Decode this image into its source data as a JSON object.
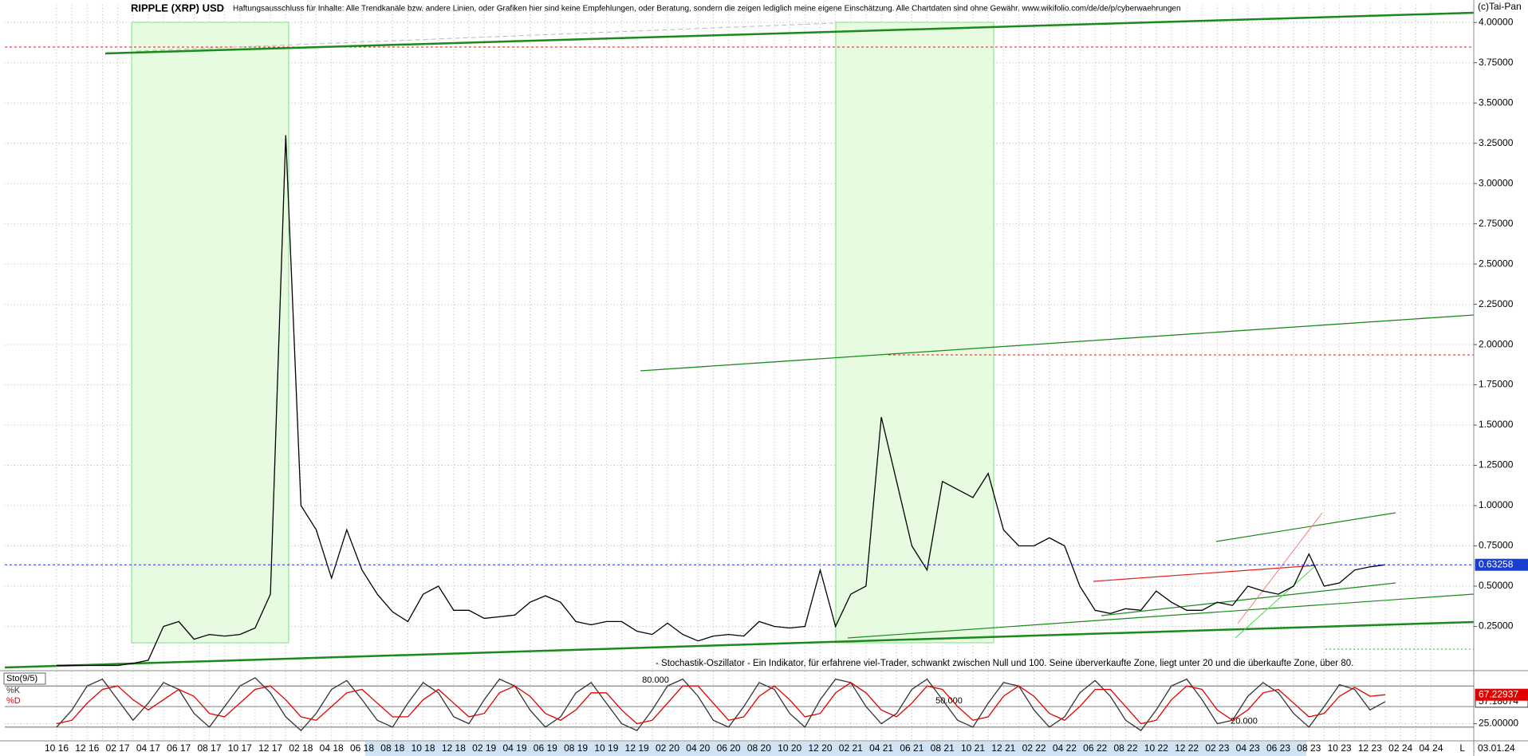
{
  "chart_data": [
    {
      "type": "line",
      "title": "RIPPLE (XRP) USD",
      "subtitle": "Haftungsausschluss für Inhalte: Alle Trendkanäle bzw. andere Linien, oder Grafiken hier sind keine Empfehlungen, oder Beratung, sondern die zeigen lediglich meine eigene Einschätzung. Alle Chartdaten sind ohne Gewähr.  www.wikifolio.com/de/de/p/cyberwaehrungen",
      "copyright": "(c)Tai-Pan",
      "annotations": [
        "L",
        "03.01.24"
      ],
      "categories": [
        "10 16",
        null,
        "12 16",
        null,
        "02 17",
        null,
        "04 17",
        null,
        "06 17",
        null,
        "08 17",
        null,
        "10 17",
        null,
        "12 17",
        null,
        "02 18",
        null,
        "04 18",
        null,
        "06 18",
        null,
        "08 18",
        null,
        "10 18",
        null,
        "12 18",
        null,
        "02 19",
        null,
        "04 19",
        null,
        "06 19",
        null,
        "08 19",
        null,
        "10 19",
        null,
        "12 19",
        null,
        "02 20",
        null,
        "04 20",
        null,
        "06 20",
        null,
        "08 20",
        null,
        "10 20",
        null,
        "12 20",
        null,
        "02 21",
        null,
        "04 21",
        null,
        "06 21",
        null,
        "08 21",
        null,
        "10 21",
        null,
        "12 21",
        null,
        "02 22",
        null,
        "04 22",
        null,
        "06 22",
        null,
        "08 22",
        null,
        "10 22",
        null,
        "12 22",
        null,
        "02 23",
        null,
        "04 23",
        null,
        "06 23",
        null,
        "08 23",
        null,
        "10 23",
        null,
        "12 23",
        null,
        "02 24",
        null,
        "04 24"
      ],
      "series": [
        {
          "name": "XRP",
          "color": "#000000",
          "values": [
            0.008,
            0.008,
            0.007,
            0.007,
            0.007,
            0.02,
            0.04,
            0.25,
            0.28,
            0.17,
            0.2,
            0.19,
            0.2,
            0.24,
            0.45,
            3.3,
            1.0,
            0.85,
            0.55,
            0.85,
            0.6,
            0.45,
            0.34,
            0.28,
            0.45,
            0.5,
            0.35,
            0.35,
            0.3,
            0.31,
            0.32,
            0.4,
            0.44,
            0.4,
            0.28,
            0.26,
            0.28,
            0.28,
            0.22,
            0.2,
            0.27,
            0.2,
            0.16,
            0.19,
            0.2,
            0.19,
            0.28,
            0.25,
            0.24,
            0.25,
            0.6,
            0.25,
            0.45,
            0.5,
            1.55,
            1.15,
            0.75,
            0.6,
            1.15,
            1.1,
            1.05,
            1.2,
            0.85,
            0.75,
            0.75,
            0.8,
            0.75,
            0.5,
            0.35,
            0.33,
            0.36,
            0.35,
            0.47,
            0.4,
            0.35,
            0.35,
            0.4,
            0.38,
            0.5,
            0.47,
            0.45,
            0.5,
            0.7,
            0.5,
            0.52,
            0.6,
            0.62,
            0.63258,
            null,
            null,
            null
          ]
        }
      ],
      "ylim": [
        -0.02,
        4.11
      ],
      "yticks": [
        {
          "value": 0.25,
          "label": "0.25000"
        },
        {
          "value": 0.5,
          "label": "0.50000"
        },
        {
          "value": 0.75,
          "label": "0.75000"
        },
        {
          "value": 1.0,
          "label": "1.00000"
        },
        {
          "value": 1.25,
          "label": "1.25000"
        },
        {
          "value": 1.5,
          "label": "1.50000"
        },
        {
          "value": 1.75,
          "label": "1.75000"
        },
        {
          "value": 2.0,
          "label": "2.00000"
        },
        {
          "value": 2.25,
          "label": "2.25000"
        },
        {
          "value": 2.5,
          "label": "2.50000"
        },
        {
          "value": 2.75,
          "label": "2.75000"
        },
        {
          "value": 3.0,
          "label": "3.00000"
        },
        {
          "value": 3.25,
          "label": "3.25000"
        },
        {
          "value": 3.5,
          "label": "3.50000"
        },
        {
          "value": 3.75,
          "label": "3.75000"
        },
        {
          "value": 4.0,
          "label": "4.00000"
        }
      ],
      "grid": true
    },
    {
      "type": "line",
      "title": "Sto(9/5)",
      "subtitle": "- Stochastik-Oszillator - Ein Indikator, für erfahrene viel-Trader, schwankt zwischen Null und 100. Seine überverkaufte Zone, liegt unter 20 und die überkaufte Zone, über 80.",
      "series": [
        {
          "name": "%K",
          "color": "#333333",
          "values": [
            20,
            45,
            80,
            90,
            60,
            30,
            55,
            85,
            75,
            40,
            20,
            50,
            80,
            92,
            70,
            35,
            15,
            40,
            75,
            88,
            60,
            30,
            20,
            55,
            85,
            70,
            35,
            25,
            60,
            90,
            80,
            45,
            20,
            35,
            70,
            85,
            55,
            25,
            15,
            45,
            80,
            90,
            65,
            30,
            20,
            50,
            85,
            75,
            40,
            20,
            60,
            90,
            85,
            50,
            25,
            40,
            75,
            90,
            60,
            30,
            20,
            55,
            85,
            80,
            45,
            20,
            35,
            70,
            88,
            65,
            30,
            15,
            45,
            80,
            90,
            60,
            25,
            30,
            65,
            85,
            70,
            40,
            20,
            50,
            82,
            75,
            45,
            57.18074,
            null,
            null,
            null
          ]
        },
        {
          "name": "%D",
          "color": "#e00000",
          "values": [
            25,
            30,
            55,
            75,
            80,
            60,
            45,
            60,
            75,
            65,
            40,
            35,
            55,
            75,
            80,
            60,
            35,
            30,
            50,
            70,
            75,
            55,
            35,
            35,
            60,
            75,
            55,
            35,
            40,
            70,
            80,
            65,
            40,
            30,
            45,
            70,
            70,
            45,
            25,
            30,
            55,
            80,
            80,
            55,
            30,
            35,
            65,
            80,
            60,
            35,
            40,
            70,
            85,
            70,
            45,
            35,
            55,
            80,
            75,
            50,
            30,
            35,
            65,
            80,
            65,
            40,
            30,
            50,
            75,
            75,
            50,
            25,
            30,
            60,
            80,
            75,
            45,
            30,
            45,
            70,
            75,
            55,
            35,
            40,
            65,
            78,
            65,
            67.22937,
            null,
            null,
            null
          ]
        }
      ],
      "ylim": [
        0,
        100
      ],
      "yticks": [
        {
          "value": 25,
          "label": "25.00000"
        }
      ],
      "levels": [
        {
          "value": 80,
          "label": "80.000"
        },
        {
          "value": 50,
          "label": "50.000"
        },
        {
          "value": 20,
          "label": "20.000"
        }
      ]
    }
  ]
}
